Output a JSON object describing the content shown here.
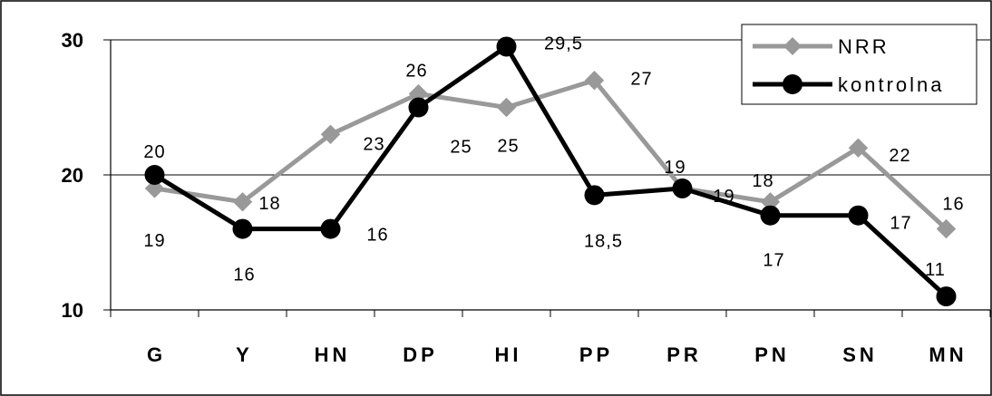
{
  "chart_data": {
    "type": "line",
    "categories": [
      "G",
      "Y",
      "HN",
      "DP",
      "HI",
      "PP",
      "PR",
      "PN",
      "SN",
      "MN"
    ],
    "series": [
      {
        "name": "NRR",
        "color": "#999999",
        "marker": "diamond",
        "values": [
          19,
          18,
          23,
          26,
          25,
          27,
          19,
          18,
          22,
          16
        ],
        "labels": [
          "19",
          "18",
          "23",
          "26",
          "25",
          "27",
          "19",
          "18",
          "22",
          "16"
        ]
      },
      {
        "name": "kontrolna",
        "color": "#000000",
        "marker": "circle",
        "values": [
          20,
          16,
          16,
          25,
          29.5,
          18.5,
          19,
          17,
          17,
          11
        ],
        "labels": [
          "20",
          "16",
          "16",
          "25",
          "29,5",
          "18,5",
          "19",
          "17",
          "17",
          "11"
        ]
      }
    ],
    "yticks": [
      "10",
      "20",
      "30"
    ],
    "ylim": [
      10,
      30
    ],
    "grid": "horizontal at 20",
    "legend": "top-right",
    "title": "",
    "xlabel": "",
    "ylabel": ""
  }
}
